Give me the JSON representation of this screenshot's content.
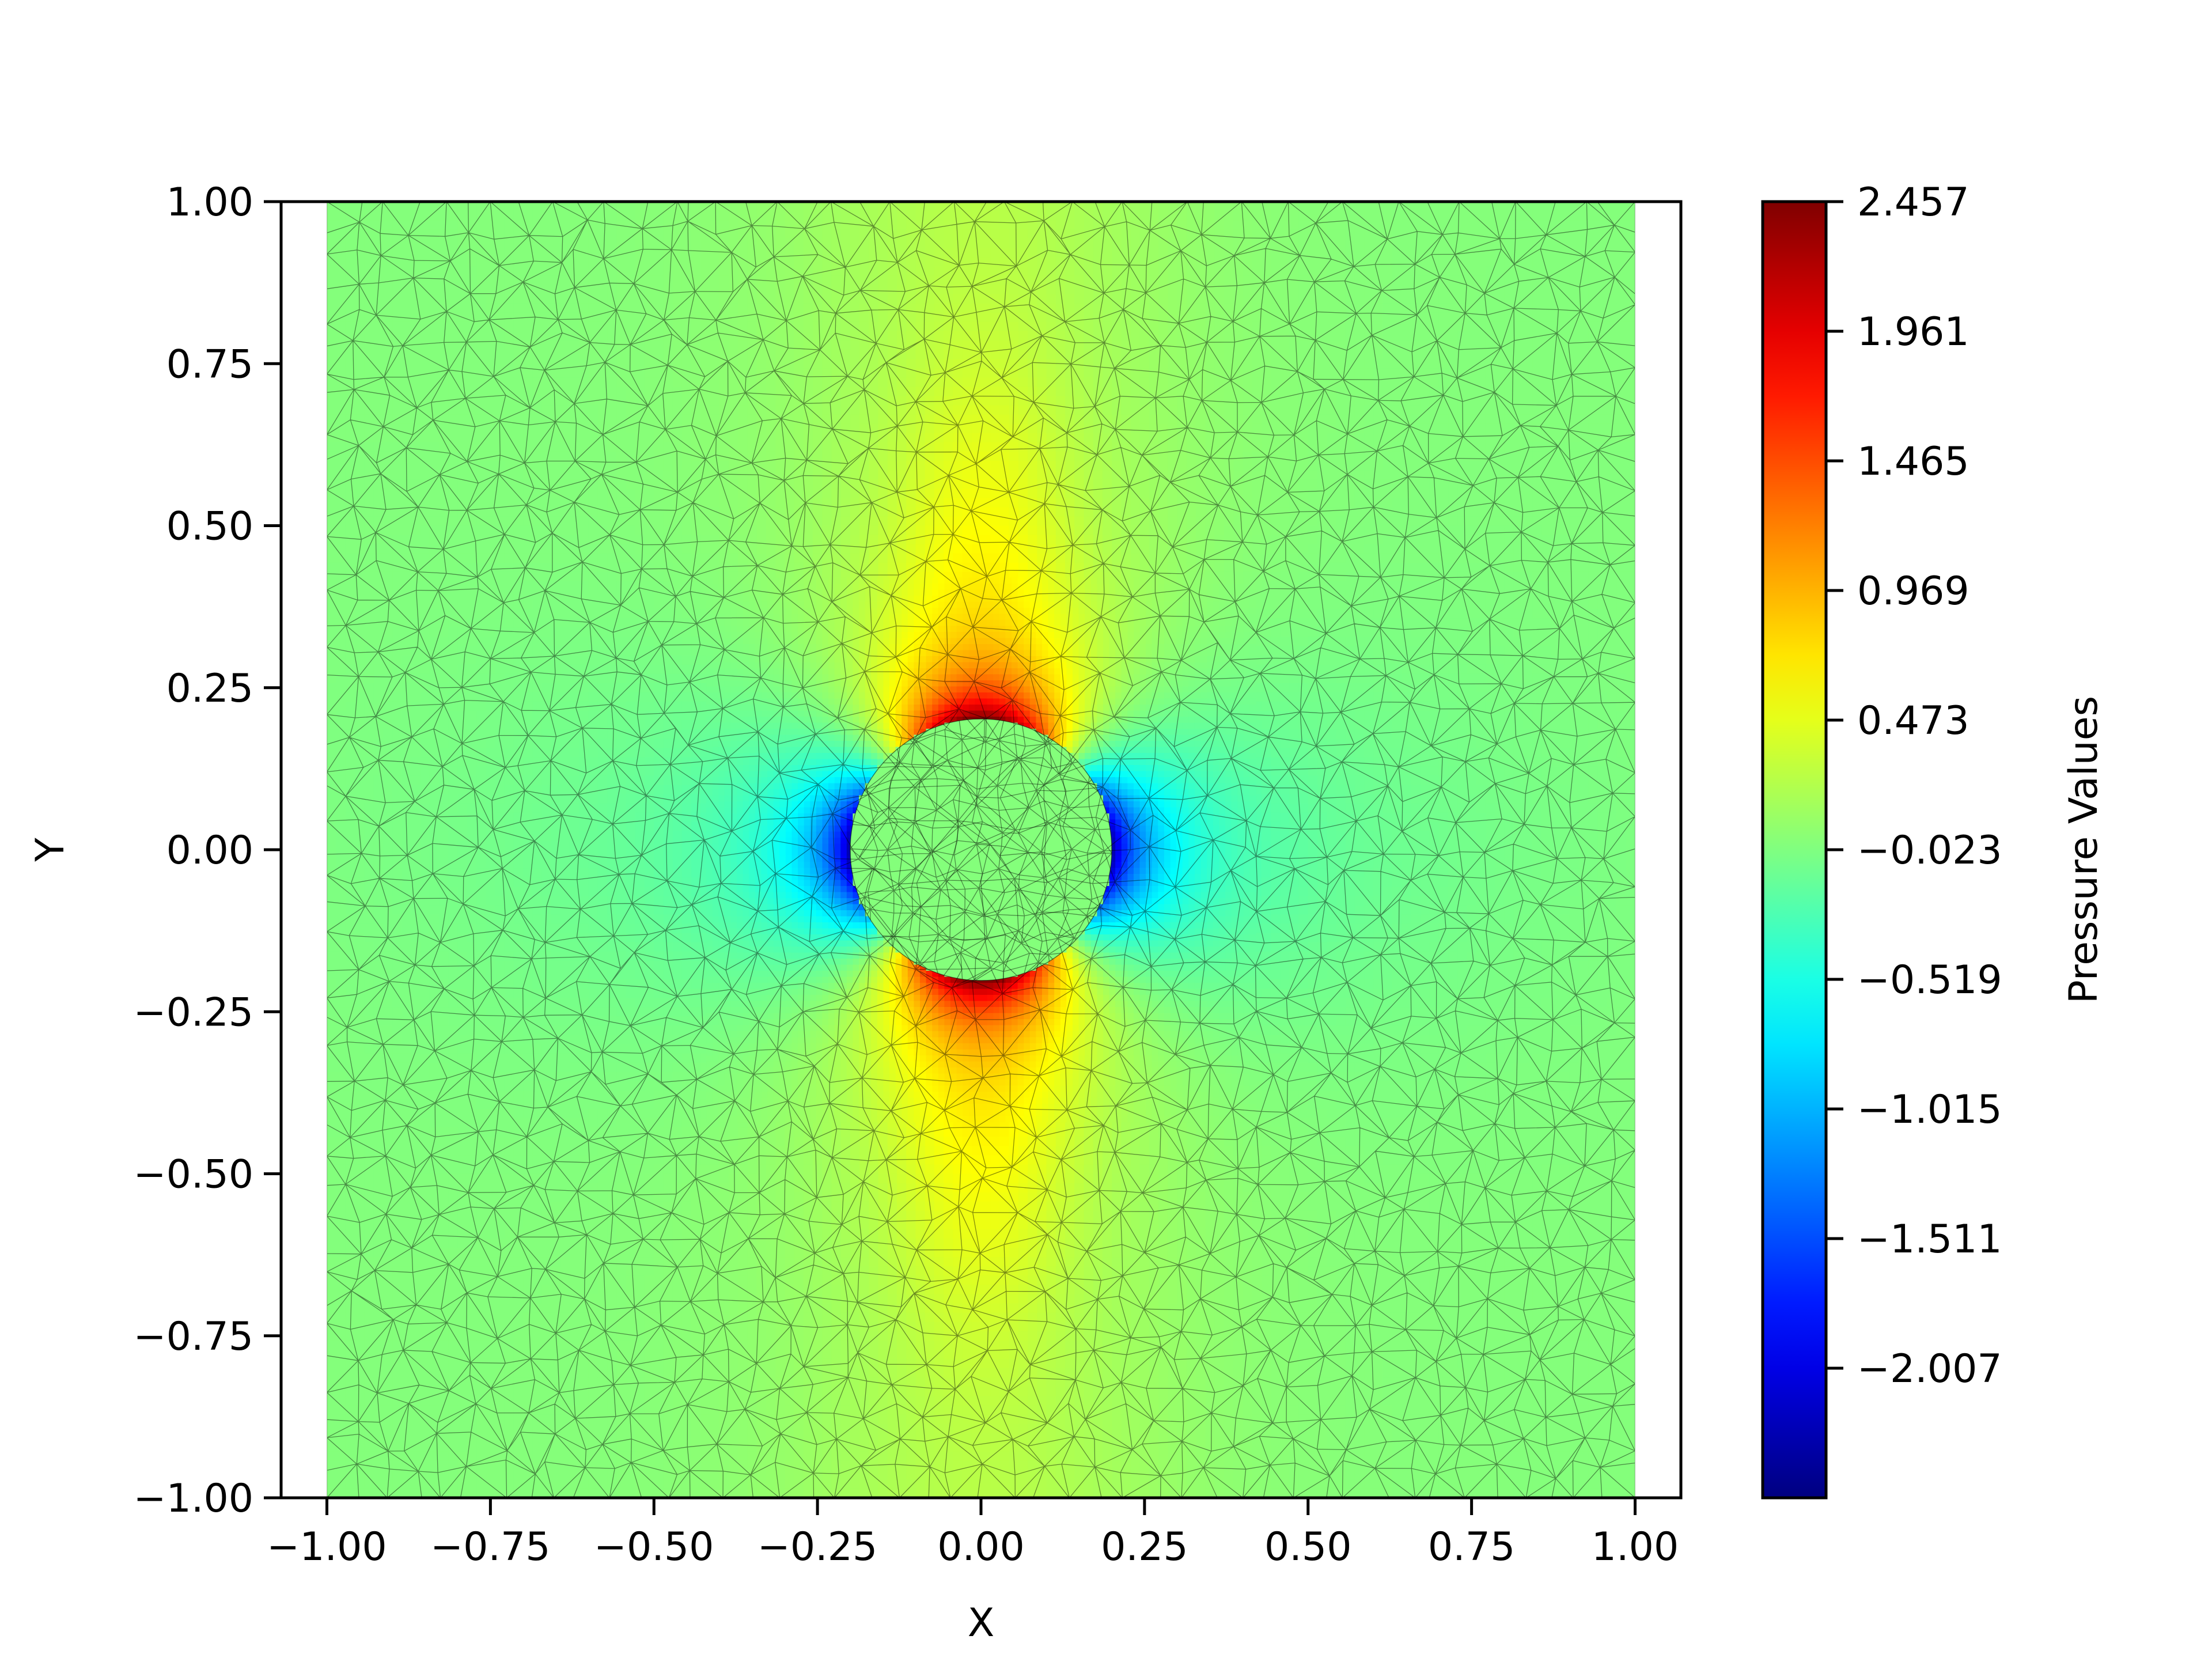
{
  "chart_data": {
    "type": "heatmap",
    "subtype": "triangular-mesh-pressure-field",
    "title": "",
    "xlabel": "X",
    "ylabel": "Y",
    "xlim": [
      -1.07,
      1.07
    ],
    "ylim": [
      -1.0,
      1.0
    ],
    "grid": false,
    "aspect": "equal",
    "domain": {
      "x": [
        -1.0,
        1.0
      ],
      "y": [
        -1.0,
        1.0
      ]
    },
    "obstacle": {
      "shape": "circle",
      "center": [
        0.0,
        0.0
      ],
      "radius": 0.2
    },
    "xticks": [
      -1.0,
      -0.75,
      -0.5,
      -0.25,
      0.0,
      0.25,
      0.5,
      0.75,
      1.0
    ],
    "xtick_labels": [
      "−1.00",
      "−0.75",
      "−0.50",
      "−0.25",
      "0.00",
      "0.25",
      "0.50",
      "0.75",
      "1.00"
    ],
    "yticks": [
      1.0,
      0.75,
      0.5,
      0.25,
      0.0,
      -0.25,
      -0.5,
      -0.75,
      -1.0
    ],
    "ytick_labels": [
      "1.00",
      "0.75",
      "0.50",
      "0.25",
      "0.00",
      "−0.25",
      "−0.50",
      "−0.75",
      "−1.00"
    ],
    "colorbar": {
      "label": "Pressure Values",
      "colormap": "jet",
      "vmin": -2.503,
      "vmax": 2.457,
      "ticks": [
        2.457,
        1.961,
        1.465,
        0.969,
        0.473,
        -0.023,
        -0.519,
        -1.015,
        -1.511,
        -2.007
      ],
      "tick_labels": [
        "2.457",
        "1.961",
        "1.465",
        "0.969",
        "0.473",
        "−0.023",
        "−0.519",
        "−1.015",
        "−1.511",
        "−2.007"
      ]
    },
    "field_features": [
      {
        "location": [
          0.0,
          0.22
        ],
        "value": 2.1,
        "label": "high pressure above obstacle"
      },
      {
        "location": [
          0.0,
          -0.22
        ],
        "value": 2.1,
        "label": "high pressure below obstacle"
      },
      {
        "location": [
          -0.22,
          0.0
        ],
        "value": -2.3,
        "label": "low pressure left of obstacle"
      },
      {
        "location": [
          0.22,
          0.0
        ],
        "value": -2.3,
        "label": "low pressure right of obstacle"
      }
    ],
    "background_value": 0.0
  }
}
